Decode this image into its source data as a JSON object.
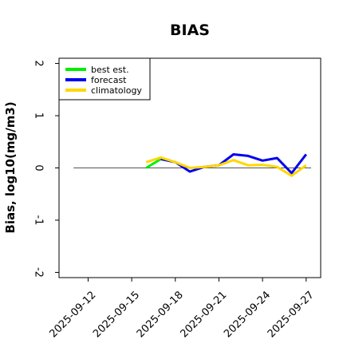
{
  "chart_data": {
    "type": "line",
    "title": "BIAS",
    "xlabel": "",
    "ylabel": "Bias, log10(mg/m3)",
    "ylim": [
      -2.1,
      2.1
    ],
    "xlim": [
      "2025-09-10",
      "2025-09-28"
    ],
    "yticks": [
      2,
      1,
      0,
      -1,
      -2
    ],
    "ytick_labels": [
      "2",
      "1",
      "0",
      "-1",
      "-2"
    ],
    "xticks": [
      "2025-09-12",
      "2025-09-15",
      "2025-09-18",
      "2025-09-21",
      "2025-09-24",
      "2025-09-27"
    ],
    "highlighted_xtick": "2025-09-18",
    "highlight_color": "#228B22",
    "reference_line": 0,
    "grid": false,
    "legend_position": "top-left",
    "series": [
      {
        "name": "best est.",
        "color": "#00ee00",
        "x": [
          "2025-09-16",
          "2025-09-17"
        ],
        "y": [
          0.0,
          0.17
        ]
      },
      {
        "name": "forecast",
        "color": "#0000ee",
        "x": [
          "2025-09-17",
          "2025-09-18",
          "2025-09-19",
          "2025-09-20",
          "2025-09-21",
          "2025-09-22",
          "2025-09-23",
          "2025-09-24",
          "2025-09-25",
          "2025-09-26",
          "2025-09-27"
        ],
        "y": [
          0.17,
          0.11,
          -0.07,
          0.02,
          0.05,
          0.26,
          0.23,
          0.14,
          0.19,
          -0.1,
          0.26
        ]
      },
      {
        "name": "climatology",
        "color": "#ffd700",
        "x": [
          "2025-09-16",
          "2025-09-17",
          "2025-09-18",
          "2025-09-19",
          "2025-09-20",
          "2025-09-21",
          "2025-09-22",
          "2025-09-23",
          "2025-09-24",
          "2025-09-25",
          "2025-09-26",
          "2025-09-27"
        ],
        "y": [
          0.11,
          0.2,
          0.11,
          0.0,
          0.02,
          0.05,
          0.15,
          0.05,
          0.06,
          0.02,
          -0.15,
          0.05
        ]
      }
    ]
  }
}
